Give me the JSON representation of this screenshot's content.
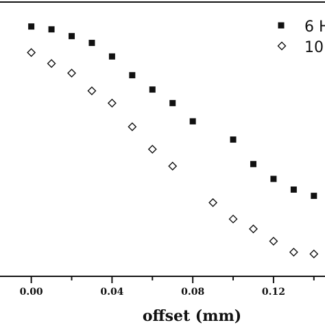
{
  "chart_data": {
    "type": "scatter",
    "xlabel": "offset (mm)",
    "ylabel": "",
    "xlim": [
      -0.0155,
      0.1455
    ],
    "ylim": [
      0,
      100
    ],
    "x_ticks": [
      0.0,
      0.04,
      0.08,
      0.12
    ],
    "x_tick_labels": [
      "0.00",
      "0.04",
      "0.08",
      "0.12"
    ],
    "x_minor_ticks": [
      0.02,
      0.06,
      0.1,
      0.14
    ],
    "legend_position": "top-right",
    "legend_clipped": true,
    "series": [
      {
        "name": "6 H",
        "marker": "filled-square",
        "color": "#111111",
        "x": [
          0.0,
          0.01,
          0.02,
          0.03,
          0.04,
          0.05,
          0.06,
          0.07,
          0.08,
          0.1,
          0.11,
          0.12,
          0.13,
          0.14
        ],
        "y": [
          95.1,
          94.0,
          91.4,
          88.8,
          83.6,
          76.4,
          70.9,
          65.7,
          58.7,
          51.7,
          42.3,
          36.6,
          32.5,
          30.1
        ]
      },
      {
        "name": "10",
        "marker": "open-diamond",
        "color": "#111111",
        "x": [
          0.0,
          0.01,
          0.02,
          0.03,
          0.04,
          0.05,
          0.06,
          0.07,
          0.09,
          0.1,
          0.11,
          0.12,
          0.13,
          0.14
        ],
        "y": [
          85.1,
          80.9,
          77.2,
          70.4,
          65.7,
          56.6,
          48.0,
          41.5,
          27.5,
          21.2,
          17.4,
          12.7,
          8.5,
          7.8
        ]
      }
    ]
  }
}
